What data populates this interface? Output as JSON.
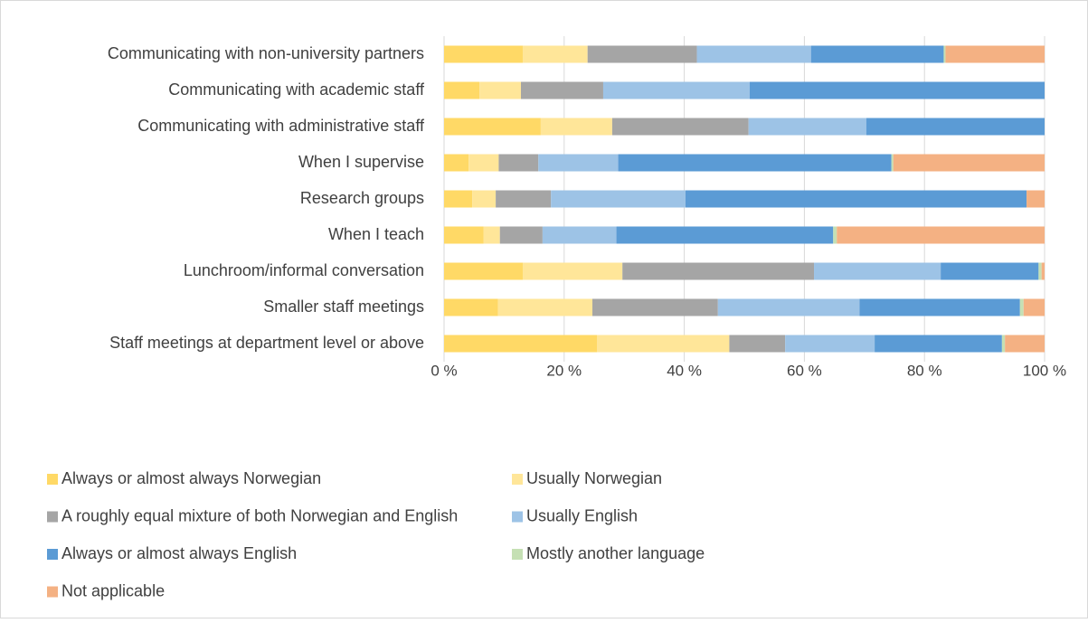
{
  "chart_data": {
    "type": "stacked-bar-horizontal",
    "categories": [
      "Communicating with non-university partners",
      "Communicating with academic staff",
      "Communicating with administrative staff",
      "When I supervise",
      "Research groups",
      "When I teach",
      "Lunchroom/informal conversation",
      "Smaller staff meetings",
      "Staff meetings at department level or above"
    ],
    "series": [
      {
        "name": "Always or almost always Norwegian",
        "color": "#ffd966",
        "values": [
          13.1,
          5.9,
          16.1,
          4.1,
          4.7,
          6.6,
          13.1,
          9.0,
          25.5
        ]
      },
      {
        "name": "Usually Norwegian",
        "color": "#ffe699",
        "values": [
          10.8,
          6.9,
          11.9,
          5.0,
          3.9,
          2.7,
          16.6,
          15.7,
          22.0
        ]
      },
      {
        "name": "A roughly equal mixture of both Norwegian and English",
        "color": "#a5a5a5",
        "values": [
          18.2,
          13.7,
          22.7,
          6.6,
          9.2,
          7.1,
          31.9,
          20.9,
          9.3
        ]
      },
      {
        "name": "Usually English",
        "color": "#9dc3e6",
        "values": [
          19.0,
          24.4,
          19.6,
          13.3,
          22.4,
          12.3,
          21.1,
          23.6,
          14.9
        ]
      },
      {
        "name": "Always or almost always English",
        "color": "#5b9bd5",
        "values": [
          22.1,
          49.1,
          29.7,
          45.5,
          56.8,
          36.1,
          16.3,
          26.7,
          21.2
        ]
      },
      {
        "name": "Mostly another language",
        "color": "#c5e0b4",
        "values": [
          0.3,
          0,
          0,
          0.3,
          0,
          0.6,
          0.5,
          0.6,
          0.5
        ]
      },
      {
        "name": "Not applicable",
        "color": "#f4b183",
        "values": [
          16.5,
          0,
          0,
          25.2,
          3.0,
          34.6,
          0.5,
          3.5,
          6.6
        ]
      }
    ],
    "xlim": [
      0,
      100
    ],
    "xticks": [
      {
        "value": 0,
        "label": "0 %"
      },
      {
        "value": 20,
        "label": "20 %"
      },
      {
        "value": 40,
        "label": "40 %"
      },
      {
        "value": 60,
        "label": "60 %"
      },
      {
        "value": 80,
        "label": "80 %"
      },
      {
        "value": 100,
        "label": "100 %"
      }
    ],
    "grid": true,
    "legend": "bottom"
  }
}
